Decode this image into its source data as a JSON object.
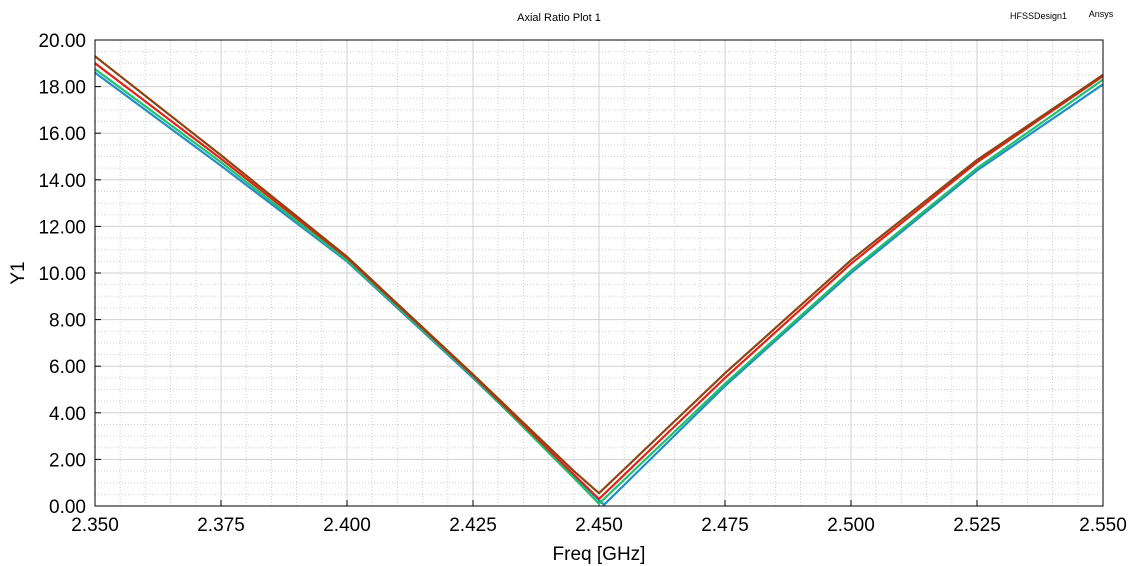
{
  "chart_data": {
    "type": "line",
    "title": "Axial Ratio Plot 1",
    "design_label": "HFSSDesign1",
    "brand_label": "Ansys",
    "xlabel": "Freq [GHz]",
    "ylabel": "Y1",
    "xlim": [
      2.35,
      2.55
    ],
    "ylim": [
      0,
      20
    ],
    "xticks": [
      "2.350",
      "2.375",
      "2.400",
      "2.425",
      "2.450",
      "2.475",
      "2.500",
      "2.525",
      "2.550"
    ],
    "yticks": [
      "0.00",
      "2.00",
      "4.00",
      "6.00",
      "8.00",
      "10.00",
      "12.00",
      "14.00",
      "16.00",
      "18.00",
      "20.00"
    ],
    "grid": true,
    "series": [
      {
        "color": "#1f8fc8",
        "x": [
          2.35,
          2.375,
          2.4,
          2.425,
          2.445,
          2.451,
          2.475,
          2.5,
          2.525,
          2.55
        ],
        "y": [
          18.6,
          14.6,
          10.5,
          5.5,
          1.3,
          0.05,
          5.15,
          10.0,
          14.4,
          18.1
        ]
      },
      {
        "color": "#22c06a",
        "x": [
          2.35,
          2.375,
          2.4,
          2.425,
          2.445,
          2.45,
          2.475,
          2.5,
          2.525,
          2.55
        ],
        "y": [
          18.75,
          14.75,
          10.55,
          5.55,
          1.2,
          0.1,
          5.25,
          10.1,
          14.5,
          18.3
        ]
      },
      {
        "color": "#e0221a",
        "x": [
          2.35,
          2.375,
          2.4,
          2.425,
          2.445,
          2.45,
          2.475,
          2.5,
          2.525,
          2.55
        ],
        "y": [
          19.0,
          14.9,
          10.65,
          5.6,
          1.35,
          0.3,
          5.5,
          10.4,
          14.75,
          18.45
        ]
      },
      {
        "color": "#8b4513",
        "x": [
          2.35,
          2.375,
          2.4,
          2.425,
          2.445,
          2.45,
          2.475,
          2.5,
          2.525,
          2.55
        ],
        "y": [
          19.3,
          15.05,
          10.7,
          5.65,
          1.5,
          0.55,
          5.7,
          10.55,
          14.85,
          18.5
        ]
      }
    ]
  }
}
